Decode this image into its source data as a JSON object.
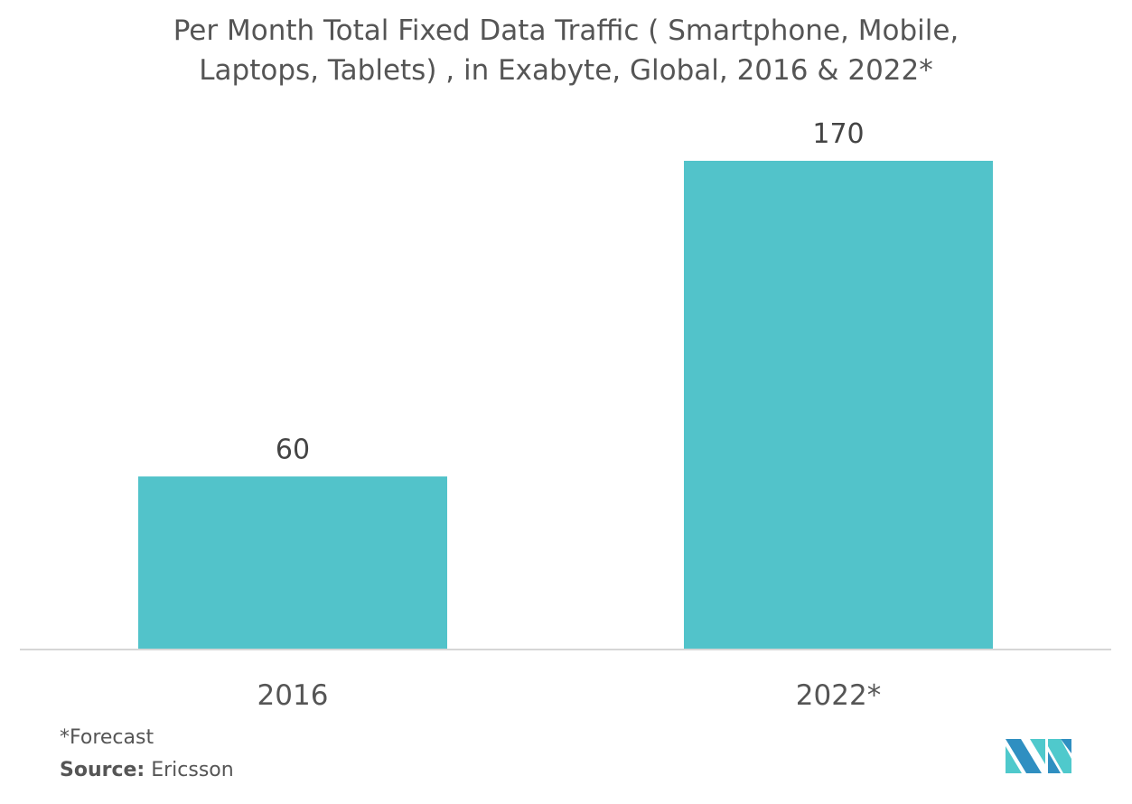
{
  "chart_data": {
    "type": "bar",
    "title_lines": [
      "Per Month Total Fixed Data Traffic ( Smartphone, Mobile,",
      "Laptops, Tablets) , in Exabyte, Global, 2016 & 2022*"
    ],
    "categories": [
      "2016",
      "2022*"
    ],
    "values": [
      60,
      170
    ],
    "data_labels": [
      "60",
      "170"
    ],
    "xlabel": "",
    "ylabel": "",
    "ylim": [
      0,
      175
    ],
    "grid": false,
    "bar_color": "#52c3ca",
    "axis_color": "#d6d6d6"
  },
  "footer": {
    "note": "*Forecast",
    "source_label": "Source:",
    "source_value": " Ericsson"
  },
  "logo": {
    "colors": [
      "#2f8fc1",
      "#4fc9cc"
    ]
  }
}
